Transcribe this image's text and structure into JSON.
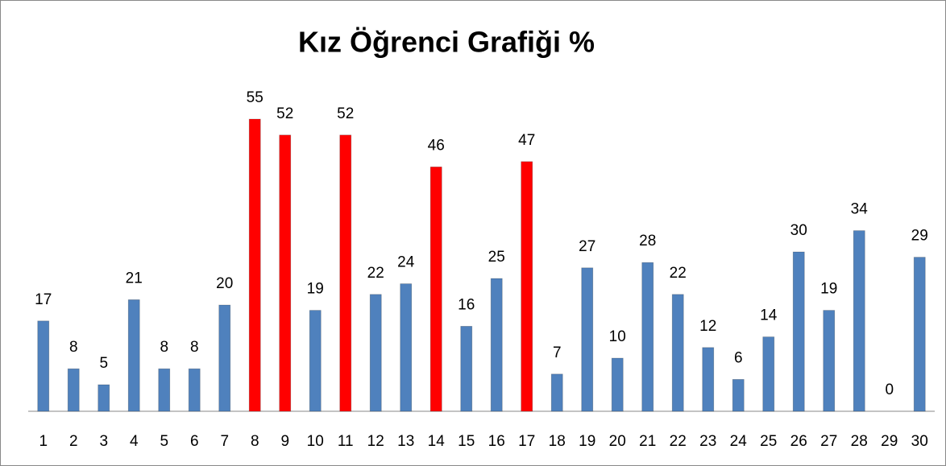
{
  "chart_data": {
    "type": "bar",
    "title": "Kız Öğrenci Grafiği %",
    "categories": [
      "1",
      "2",
      "3",
      "4",
      "5",
      "6",
      "7",
      "8",
      "9",
      "10",
      "11",
      "12",
      "13",
      "14",
      "15",
      "16",
      "17",
      "18",
      "19",
      "20",
      "21",
      "22",
      "23",
      "24",
      "25",
      "26",
      "27",
      "28",
      "29",
      "30"
    ],
    "values": [
      17,
      8,
      5,
      21,
      8,
      8,
      20,
      55,
      52,
      19,
      52,
      22,
      24,
      46,
      16,
      25,
      47,
      7,
      27,
      10,
      28,
      22,
      12,
      6,
      14,
      30,
      19,
      34,
      0,
      29
    ],
    "colors": [
      "#4f81bd",
      "#4f81bd",
      "#4f81bd",
      "#4f81bd",
      "#4f81bd",
      "#4f81bd",
      "#4f81bd",
      "#ff0000",
      "#ff0000",
      "#4f81bd",
      "#ff0000",
      "#4f81bd",
      "#4f81bd",
      "#ff0000",
      "#4f81bd",
      "#4f81bd",
      "#ff0000",
      "#4f81bd",
      "#4f81bd",
      "#4f81bd",
      "#4f81bd",
      "#4f81bd",
      "#4f81bd",
      "#4f81bd",
      "#4f81bd",
      "#4f81bd",
      "#4f81bd",
      "#4f81bd",
      "#4f81bd",
      "#4f81bd"
    ],
    "ylim": [
      0,
      60
    ],
    "grid": false
  }
}
